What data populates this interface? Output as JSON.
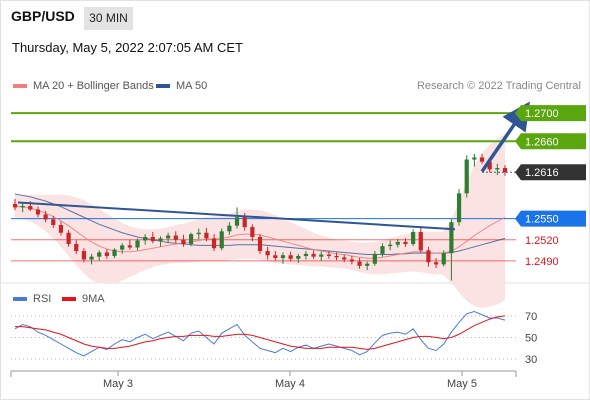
{
  "header": {
    "pair": "GBP/USD",
    "timeframe": "30 MIN",
    "timestamp": "Thursday, May 5, 2022 2:07:05 AM CET",
    "credit": "Research © 2022 Trading Central"
  },
  "legend": {
    "ma20": "MA 20 + Bollinger Bands",
    "ma50": "MA 50",
    "rsi": "RSI",
    "rsi_ma": "9MA"
  },
  "colors": {
    "green_level": "#5aa60f",
    "blue_level": "#1a73e8",
    "red_level": "#e4141b",
    "bollinger_fill": "#fbe0e0",
    "ma20": "#f08080",
    "ma50": "#2f5597",
    "trendline": "#2f5597",
    "candle_up": "#2e7d32",
    "candle_down": "#c62828",
    "last_price_bg": "#333333",
    "rsi_line": "#4a7bd0",
    "rsi_ma_line": "#e4141b"
  },
  "chart_data": [
    {
      "type": "candlestick",
      "title": "GBP/USD 30 MIN",
      "x_ticks": [
        "May 3",
        "May 4",
        "May 5"
      ],
      "ylim": [
        1.246,
        1.273
      ],
      "levels": [
        {
          "value": 1.27,
          "label": "1.2700",
          "kind": "resistance"
        },
        {
          "value": 1.266,
          "label": "1.2660",
          "kind": "resistance"
        },
        {
          "value": 1.2616,
          "label": "1.2616",
          "kind": "last-price"
        },
        {
          "value": 1.255,
          "label": "1.2550",
          "kind": "pivot"
        },
        {
          "value": 1.252,
          "label": "1.2520",
          "kind": "support"
        },
        {
          "value": 1.249,
          "label": "1.2490",
          "kind": "support"
        }
      ],
      "trendline": {
        "start": 1.2573,
        "end": 1.2535
      },
      "forecast_arrow": {
        "from": 1.2617,
        "to": 1.27
      },
      "candles": [
        [
          1.2571,
          1.2578,
          1.2562,
          1.2566
        ],
        [
          1.2566,
          1.2572,
          1.2559,
          1.2568
        ],
        [
          1.2568,
          1.2575,
          1.2561,
          1.2563
        ],
        [
          1.2563,
          1.2567,
          1.2552,
          1.2556
        ],
        [
          1.2556,
          1.2561,
          1.2545,
          1.2549
        ],
        [
          1.2549,
          1.2554,
          1.2537,
          1.2541
        ],
        [
          1.2541,
          1.2546,
          1.2526,
          1.253
        ],
        [
          1.253,
          1.2534,
          1.251,
          1.2514
        ],
        [
          1.2514,
          1.2519,
          1.25,
          1.2504
        ],
        [
          1.2504,
          1.2508,
          1.2488,
          1.2492
        ],
        [
          1.2492,
          1.25,
          1.2485,
          1.2496
        ],
        [
          1.2496,
          1.2505,
          1.249,
          1.2502
        ],
        [
          1.2502,
          1.2507,
          1.2493,
          1.2497
        ],
        [
          1.2497,
          1.2508,
          1.2494,
          1.2506
        ],
        [
          1.2506,
          1.2515,
          1.25,
          1.2512
        ],
        [
          1.2512,
          1.252,
          1.2506,
          1.2509
        ],
        [
          1.2509,
          1.2522,
          1.2505,
          1.2519
        ],
        [
          1.2519,
          1.2528,
          1.2513,
          1.2524
        ],
        [
          1.2524,
          1.2531,
          1.2515,
          1.2518
        ],
        [
          1.2518,
          1.2525,
          1.251,
          1.2522
        ],
        [
          1.2522,
          1.253,
          1.2516,
          1.2526
        ],
        [
          1.2526,
          1.2532,
          1.2516,
          1.252
        ],
        [
          1.252,
          1.2527,
          1.251,
          1.2514
        ],
        [
          1.2514,
          1.253,
          1.2511,
          1.2528
        ],
        [
          1.2528,
          1.2536,
          1.2521,
          1.253
        ],
        [
          1.253,
          1.2537,
          1.2518,
          1.2522
        ],
        [
          1.2522,
          1.2528,
          1.2504,
          1.2508
        ],
        [
          1.2508,
          1.2536,
          1.2505,
          1.2532
        ],
        [
          1.2532,
          1.2545,
          1.2527,
          1.254
        ],
        [
          1.254,
          1.2566,
          1.2536,
          1.2552
        ],
        [
          1.2552,
          1.2558,
          1.2533,
          1.2538
        ],
        [
          1.2538,
          1.2542,
          1.2518,
          1.2524
        ],
        [
          1.2524,
          1.2528,
          1.25,
          1.2504
        ],
        [
          1.2504,
          1.251,
          1.2492,
          1.2498
        ],
        [
          1.2498,
          1.2504,
          1.249,
          1.2494
        ],
        [
          1.2494,
          1.2502,
          1.2486,
          1.2498
        ],
        [
          1.2498,
          1.2503,
          1.2489,
          1.2493
        ],
        [
          1.2493,
          1.25,
          1.2487,
          1.2497
        ],
        [
          1.2497,
          1.2504,
          1.2492,
          1.25
        ],
        [
          1.25,
          1.2505,
          1.2493,
          1.2496
        ],
        [
          1.2496,
          1.2503,
          1.249,
          1.2499
        ],
        [
          1.2499,
          1.2504,
          1.2493,
          1.2497
        ],
        [
          1.2497,
          1.2502,
          1.2491,
          1.2495
        ],
        [
          1.2495,
          1.2499,
          1.2488,
          1.2492
        ],
        [
          1.2492,
          1.2497,
          1.2485,
          1.2489
        ],
        [
          1.2489,
          1.2494,
          1.2479,
          1.2483
        ],
        [
          1.2483,
          1.2489,
          1.2477,
          1.2486
        ],
        [
          1.2486,
          1.2504,
          1.2483,
          1.25
        ],
        [
          1.25,
          1.2515,
          1.2496,
          1.2511
        ],
        [
          1.2511,
          1.2519,
          1.2505,
          1.2513
        ],
        [
          1.2513,
          1.2521,
          1.2509,
          1.2517
        ],
        [
          1.2517,
          1.2522,
          1.251,
          1.2514
        ],
        [
          1.2514,
          1.2535,
          1.2511,
          1.2531
        ],
        [
          1.2531,
          1.2538,
          1.2502,
          1.2505
        ],
        [
          1.2505,
          1.251,
          1.2482,
          1.2488
        ],
        [
          1.2488,
          1.2494,
          1.248,
          1.2485
        ],
        [
          1.2485,
          1.2505,
          1.2482,
          1.2501
        ],
        [
          1.2501,
          1.255,
          1.2462,
          1.2545
        ],
        [
          1.2545,
          1.2592,
          1.254,
          1.2586
        ],
        [
          1.2586,
          1.264,
          1.258,
          1.2634
        ],
        [
          1.2634,
          1.2642,
          1.2624,
          1.2637
        ],
        [
          1.2637,
          1.2642,
          1.2628,
          1.2631
        ],
        [
          1.2631,
          1.2634,
          1.2616,
          1.262
        ],
        [
          1.262,
          1.2628,
          1.2612,
          1.2622
        ],
        [
          1.2622,
          1.2626,
          1.2611,
          1.2616
        ]
      ],
      "ma20": [
        1.2568,
        1.2567,
        1.2565,
        1.2562,
        1.2558,
        1.2553,
        1.2547,
        1.254,
        1.2532,
        1.2524,
        1.2517,
        1.2511,
        1.2507,
        1.2504,
        1.2503,
        1.2503,
        1.2504,
        1.2506,
        1.2508,
        1.251,
        1.2512,
        1.2514,
        1.2515,
        1.2517,
        1.2519,
        1.2521,
        1.2521,
        1.2522,
        1.2524,
        1.2527,
        1.2528,
        1.2528,
        1.2527,
        1.2524,
        1.2521,
        1.2518,
        1.2515,
        1.2512,
        1.2509,
        1.2506,
        1.2504,
        1.2502,
        1.25,
        1.2499,
        1.2497,
        1.2495,
        1.2494,
        1.2494,
        1.2495,
        1.2497,
        1.2499,
        1.2501,
        1.2503,
        1.2503,
        1.2502,
        1.2501,
        1.2501,
        1.2504,
        1.251,
        1.2518,
        1.2526,
        1.2533,
        1.254,
        1.2546,
        1.2552
      ],
      "ma50": [
        1.2585,
        1.2583,
        1.2581,
        1.2578,
        1.2575,
        1.2571,
        1.2567,
        1.2562,
        1.2557,
        1.2552,
        1.2547,
        1.2542,
        1.2538,
        1.2534,
        1.253,
        1.2527,
        1.2524,
        1.2522,
        1.252,
        1.2518,
        1.2516,
        1.2515,
        1.2514,
        1.2513,
        1.2512,
        1.2512,
        1.2512,
        1.2512,
        1.2512,
        1.2513,
        1.2513,
        1.2513,
        1.2513,
        1.2512,
        1.2511,
        1.251,
        1.2509,
        1.2508,
        1.2507,
        1.2506,
        1.2505,
        1.2504,
        1.2503,
        1.2502,
        1.2501,
        1.25,
        1.2499,
        1.2499,
        1.2499,
        1.2499,
        1.25,
        1.25,
        1.2501,
        1.2501,
        1.2501,
        1.2501,
        1.2501,
        1.2502,
        1.2504,
        1.2507,
        1.251,
        1.2513,
        1.2516,
        1.2519,
        1.2522
      ],
      "bb_width": [
        0.0016,
        0.0017,
        0.0019,
        0.0022,
        0.0026,
        0.0031,
        0.0037,
        0.0043,
        0.0048,
        0.0052,
        0.0054,
        0.0053,
        0.005,
        0.0046,
        0.0041,
        0.0036,
        0.0032,
        0.0029,
        0.0027,
        0.0026,
        0.0026,
        0.0027,
        0.0028,
        0.0029,
        0.003,
        0.0031,
        0.0032,
        0.0032,
        0.0033,
        0.0034,
        0.0035,
        0.0035,
        0.0035,
        0.0035,
        0.0034,
        0.0032,
        0.003,
        0.0028,
        0.0026,
        0.0024,
        0.0022,
        0.0021,
        0.002,
        0.002,
        0.002,
        0.0021,
        0.0022,
        0.0023,
        0.0024,
        0.0025,
        0.0026,
        0.0027,
        0.0028,
        0.0029,
        0.003,
        0.003,
        0.0031,
        0.0045,
        0.0065,
        0.0085,
        0.01,
        0.011,
        0.0115,
        0.0118,
        0.0118
      ]
    },
    {
      "type": "line",
      "title": "RSI",
      "ylim": [
        20,
        80
      ],
      "y_ticks": [
        70,
        50,
        30
      ],
      "series": [
        {
          "name": "RSI",
          "values": [
            58,
            62,
            60,
            55,
            52,
            48,
            44,
            40,
            36,
            33,
            37,
            41,
            39,
            44,
            48,
            46,
            50,
            53,
            49,
            52,
            55,
            51,
            47,
            54,
            56,
            50,
            44,
            54,
            58,
            62,
            52,
            46,
            40,
            38,
            36,
            40,
            37,
            41,
            43,
            40,
            42,
            44,
            42,
            40,
            38,
            34,
            37,
            45,
            52,
            54,
            55,
            53,
            58,
            48,
            40,
            38,
            44,
            55,
            64,
            72,
            74,
            71,
            68,
            68,
            66
          ]
        },
        {
          "name": "9MA",
          "values": [
            60,
            60,
            59,
            58,
            57,
            55,
            53,
            50,
            47,
            44,
            42,
            41,
            40,
            40,
            41,
            42,
            44,
            46,
            47,
            49,
            50,
            51,
            51,
            52,
            52,
            52,
            51,
            51,
            52,
            53,
            53,
            52,
            50,
            48,
            46,
            44,
            42,
            41,
            40,
            40,
            40,
            41,
            41,
            41,
            41,
            40,
            39,
            40,
            42,
            44,
            46,
            48,
            50,
            51,
            51,
            50,
            49,
            50,
            53,
            57,
            61,
            64,
            67,
            69,
            70
          ]
        }
      ]
    }
  ]
}
